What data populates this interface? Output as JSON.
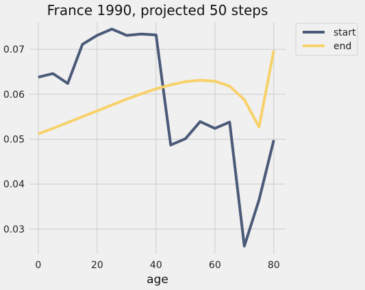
{
  "chart_data": {
    "type": "line",
    "title": "France 1990, projected 50 steps",
    "xlabel": "age",
    "ylabel": "",
    "x": [
      0,
      5,
      10,
      15,
      20,
      25,
      30,
      35,
      40,
      45,
      50,
      55,
      60,
      65,
      70,
      75,
      80
    ],
    "series": [
      {
        "name": "start",
        "color": "#4a5a78",
        "values": [
          0.0638,
          0.0646,
          0.0624,
          0.0711,
          0.0731,
          0.0745,
          0.0731,
          0.0734,
          0.0732,
          0.0487,
          0.0501,
          0.0539,
          0.0524,
          0.0538,
          0.0262,
          0.0365,
          0.0498
        ]
      },
      {
        "name": "end",
        "color": "#f7d16a",
        "values": [
          0.0512,
          0.0524,
          0.0537,
          0.055,
          0.0563,
          0.0576,
          0.0589,
          0.0601,
          0.0612,
          0.0621,
          0.0628,
          0.0631,
          0.0629,
          0.0618,
          0.0588,
          0.0527,
          0.0697
        ]
      }
    ],
    "xlim": [
      -3,
      84
    ],
    "ylim": [
      0.0245,
      0.0761
    ],
    "xticks": [
      0,
      20,
      40,
      60,
      80
    ],
    "yticks": [
      0.03,
      0.04,
      0.05,
      0.06,
      0.07
    ],
    "ytick_labels": [
      "0.03",
      "0.04",
      "0.05",
      "0.06",
      "0.07"
    ],
    "grid": true,
    "legend_placement": "outside-top-right",
    "background": "#f0f0f0",
    "grid_color": "#cbcbcb"
  }
}
